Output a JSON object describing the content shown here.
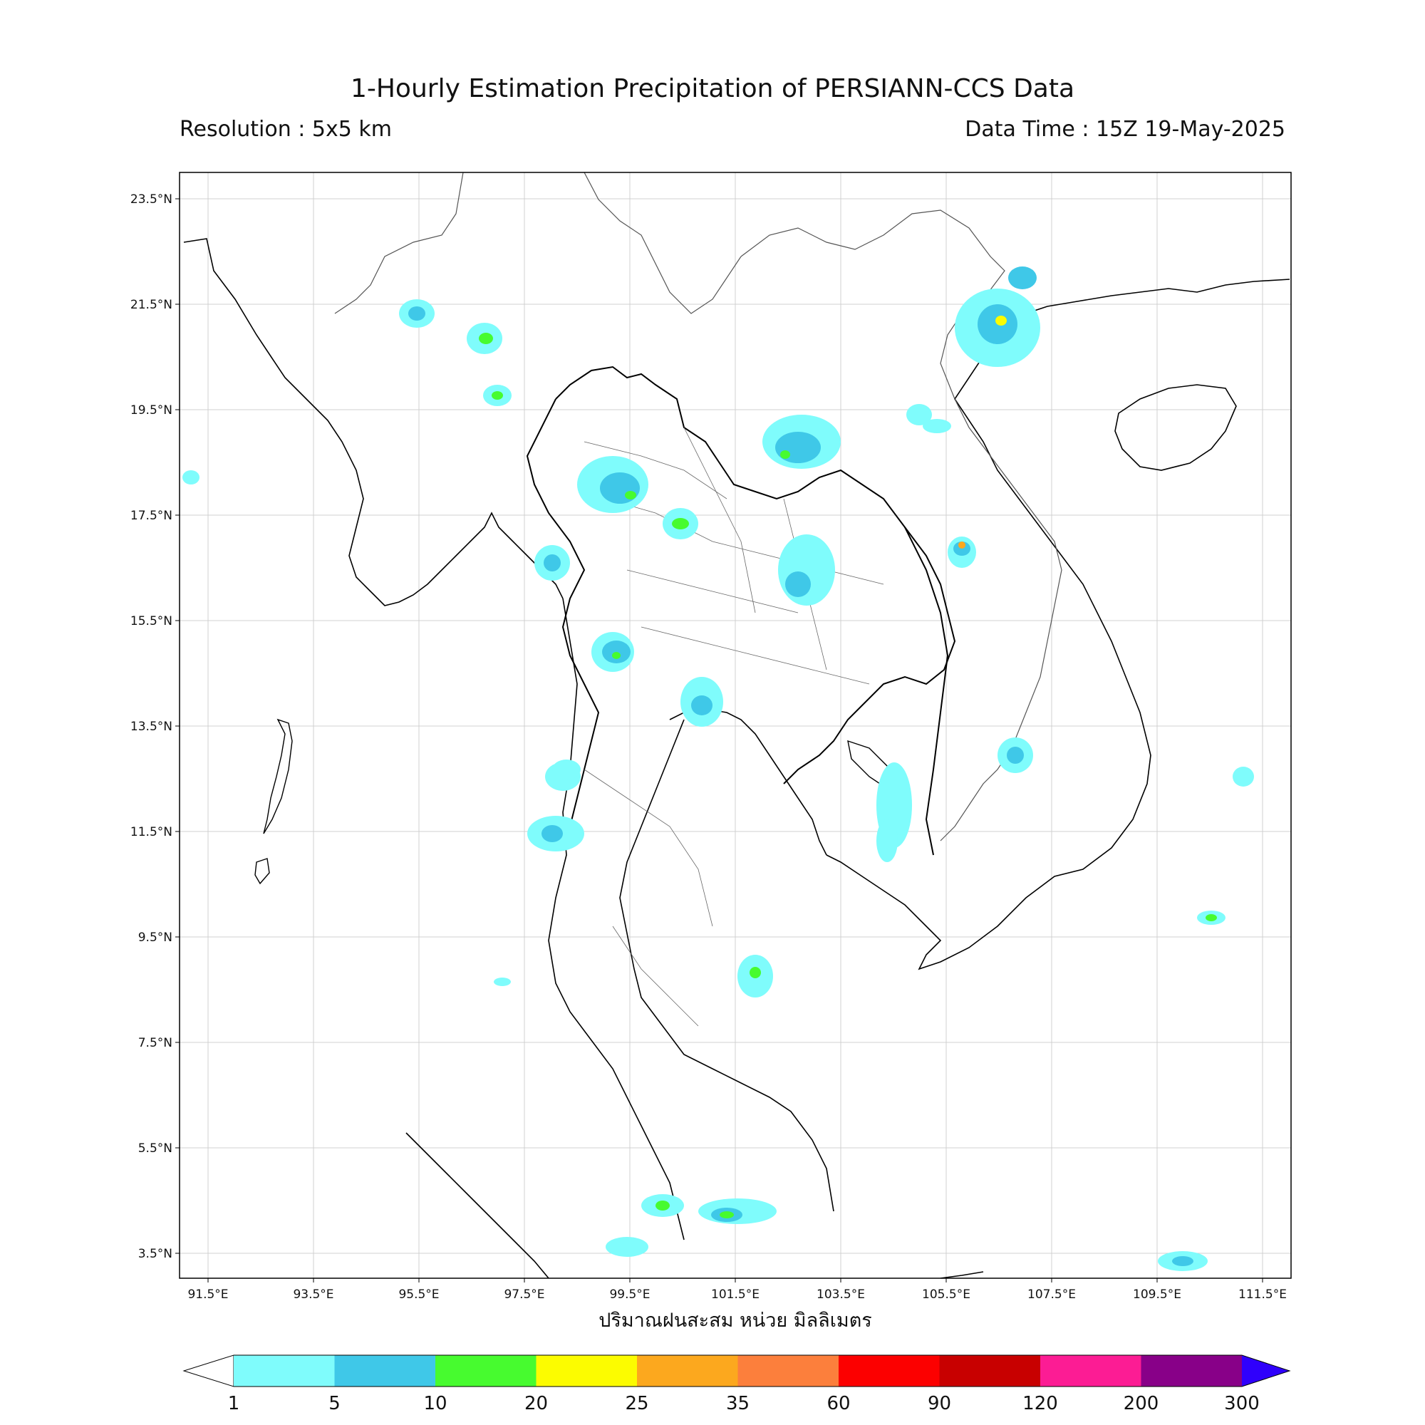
{
  "header": {
    "title": "1-Hourly Estimation Precipitation of PERSIANN-CCS Data",
    "resolution": "Resolution : 5x5 km",
    "data_time": "Data Time : 15Z 19-May-2025"
  },
  "map": {
    "lat_labels": [
      "23.5°N",
      "21.5°N",
      "19.5°N",
      "17.5°N",
      "15.5°N",
      "13.5°N",
      "11.5°N",
      "9.5°N",
      "7.5°N",
      "5.5°N",
      "3.5°N"
    ],
    "lon_labels": [
      "91.5°E",
      "93.5°E",
      "95.5°E",
      "97.5°E",
      "99.5°E",
      "101.5°E",
      "103.5°E",
      "105.5°E",
      "107.5°E",
      "109.5°E",
      "111.5°E"
    ],
    "unit_label": "ปริมาณฝนสะสม หน่วย มิลลิเมตร"
  },
  "colorbar": {
    "ticks": [
      "1",
      "5",
      "10",
      "20",
      "25",
      "35",
      "60",
      "90",
      "120",
      "200",
      "300"
    ],
    "colors": [
      "#7ffcfc",
      "#3fc8e8",
      "#47fb2f",
      "#fcfc00",
      "#fca81e",
      "#fc7f3c",
      "#fc0000",
      "#c80000",
      "#fc1c94",
      "#880088",
      "#2f00fc"
    ]
  }
}
